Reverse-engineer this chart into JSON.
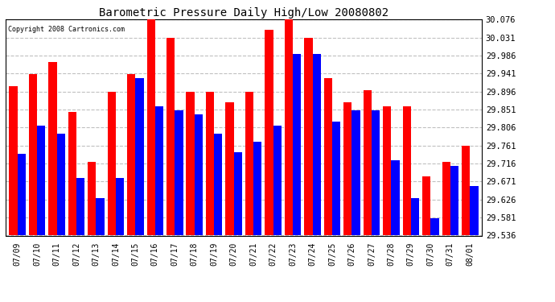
{
  "title": "Barometric Pressure Daily High/Low 20080802",
  "copyright": "Copyright 2008 Cartronics.com",
  "dates": [
    "07/09",
    "07/10",
    "07/11",
    "07/12",
    "07/13",
    "07/14",
    "07/15",
    "07/16",
    "07/17",
    "07/18",
    "07/19",
    "07/20",
    "07/21",
    "07/22",
    "07/23",
    "07/24",
    "07/25",
    "07/26",
    "07/27",
    "07/28",
    "07/29",
    "07/30",
    "07/31",
    "08/01"
  ],
  "highs": [
    29.91,
    29.94,
    29.97,
    29.845,
    29.72,
    29.896,
    29.94,
    30.08,
    30.03,
    29.896,
    29.896,
    29.87,
    29.896,
    30.05,
    30.08,
    30.03,
    29.93,
    29.87,
    29.9,
    29.86,
    29.86,
    29.685,
    29.72,
    29.76
  ],
  "lows": [
    29.74,
    29.81,
    29.79,
    29.68,
    29.63,
    29.68,
    29.93,
    29.86,
    29.85,
    29.84,
    29.79,
    29.745,
    29.77,
    29.81,
    29.99,
    29.99,
    29.82,
    29.85,
    29.85,
    29.725,
    29.63,
    29.58,
    29.71,
    29.66
  ],
  "high_color": "#ff0000",
  "low_color": "#0000ff",
  "bg_color": "#ffffff",
  "grid_color": "#c0c0c0",
  "yticks": [
    29.536,
    29.581,
    29.626,
    29.671,
    29.716,
    29.761,
    29.806,
    29.851,
    29.896,
    29.941,
    29.986,
    30.031,
    30.076
  ],
  "ymin": 29.536,
  "ymax": 30.076,
  "bar_width": 0.42
}
